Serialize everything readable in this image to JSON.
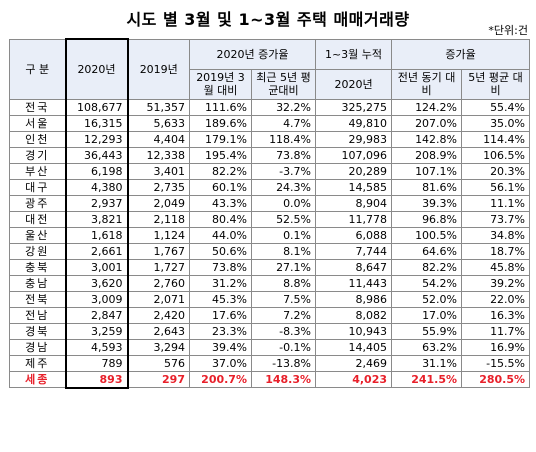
{
  "title": "시도 별 3월 및 1~3월 주택 매매거래량",
  "unit": "*단위:건",
  "headers": {
    "region": "구 분",
    "y2020": "2020년",
    "y2019": "2019년",
    "change2020": "2020년  증가율",
    "vs2019_mar": "2019년 3월 대비",
    "vs5yr": "최근 5년 평균대비",
    "cum": "1~3월 누적",
    "cum2020": "2020년",
    "growth": "증가율",
    "yoy": "전년 동기 대비",
    "fiveyr": "5년 평균 대비"
  },
  "rows": [
    {
      "region": "전국",
      "y2020": "108,677",
      "y2019": "51,357",
      "vs2019": "111.6%",
      "vs5yr": "32.2%",
      "cum2020": "325,275",
      "yoy": "124.2%",
      "fiveyr": "55.4%"
    },
    {
      "region": "서울",
      "y2020": "16,315",
      "y2019": "5,633",
      "vs2019": "189.6%",
      "vs5yr": "4.7%",
      "cum2020": "49,810",
      "yoy": "207.0%",
      "fiveyr": "35.0%"
    },
    {
      "region": "인천",
      "y2020": "12,293",
      "y2019": "4,404",
      "vs2019": "179.1%",
      "vs5yr": "118.4%",
      "cum2020": "29,983",
      "yoy": "142.8%",
      "fiveyr": "114.4%"
    },
    {
      "region": "경기",
      "y2020": "36,443",
      "y2019": "12,338",
      "vs2019": "195.4%",
      "vs5yr": "73.8%",
      "cum2020": "107,096",
      "yoy": "208.9%",
      "fiveyr": "106.5%"
    },
    {
      "region": "부산",
      "y2020": "6,198",
      "y2019": "3,401",
      "vs2019": "82.2%",
      "vs5yr": "-3.7%",
      "cum2020": "20,289",
      "yoy": "107.1%",
      "fiveyr": "20.3%"
    },
    {
      "region": "대구",
      "y2020": "4,380",
      "y2019": "2,735",
      "vs2019": "60.1%",
      "vs5yr": "24.3%",
      "cum2020": "14,585",
      "yoy": "81.6%",
      "fiveyr": "56.1%"
    },
    {
      "region": "광주",
      "y2020": "2,937",
      "y2019": "2,049",
      "vs2019": "43.3%",
      "vs5yr": "0.0%",
      "cum2020": "8,904",
      "yoy": "39.3%",
      "fiveyr": "11.1%"
    },
    {
      "region": "대전",
      "y2020": "3,821",
      "y2019": "2,118",
      "vs2019": "80.4%",
      "vs5yr": "52.5%",
      "cum2020": "11,778",
      "yoy": "96.8%",
      "fiveyr": "73.7%"
    },
    {
      "region": "울산",
      "y2020": "1,618",
      "y2019": "1,124",
      "vs2019": "44.0%",
      "vs5yr": "0.1%",
      "cum2020": "6,088",
      "yoy": "100.5%",
      "fiveyr": "34.8%"
    },
    {
      "region": "강원",
      "y2020": "2,661",
      "y2019": "1,767",
      "vs2019": "50.6%",
      "vs5yr": "8.1%",
      "cum2020": "7,744",
      "yoy": "64.6%",
      "fiveyr": "18.7%"
    },
    {
      "region": "충북",
      "y2020": "3,001",
      "y2019": "1,727",
      "vs2019": "73.8%",
      "vs5yr": "27.1%",
      "cum2020": "8,647",
      "yoy": "82.2%",
      "fiveyr": "45.8%"
    },
    {
      "region": "충남",
      "y2020": "3,620",
      "y2019": "2,760",
      "vs2019": "31.2%",
      "vs5yr": "8.8%",
      "cum2020": "11,443",
      "yoy": "54.2%",
      "fiveyr": "39.2%"
    },
    {
      "region": "전북",
      "y2020": "3,009",
      "y2019": "2,071",
      "vs2019": "45.3%",
      "vs5yr": "7.5%",
      "cum2020": "8,986",
      "yoy": "52.0%",
      "fiveyr": "22.0%"
    },
    {
      "region": "전남",
      "y2020": "2,847",
      "y2019": "2,420",
      "vs2019": "17.6%",
      "vs5yr": "7.2%",
      "cum2020": "8,082",
      "yoy": "17.0%",
      "fiveyr": "16.3%"
    },
    {
      "region": "경북",
      "y2020": "3,259",
      "y2019": "2,643",
      "vs2019": "23.3%",
      "vs5yr": "-8.3%",
      "cum2020": "10,943",
      "yoy": "55.9%",
      "fiveyr": "11.7%"
    },
    {
      "region": "경남",
      "y2020": "4,593",
      "y2019": "3,294",
      "vs2019": "39.4%",
      "vs5yr": "-0.1%",
      "cum2020": "14,405",
      "yoy": "63.2%",
      "fiveyr": "16.9%"
    },
    {
      "region": "제주",
      "y2020": "789",
      "y2019": "576",
      "vs2019": "37.0%",
      "vs5yr": "-13.8%",
      "cum2020": "2,469",
      "yoy": "31.1%",
      "fiveyr": "-15.5%"
    },
    {
      "region": "세종",
      "y2020": "893",
      "y2019": "297",
      "vs2019": "200.7%",
      "vs5yr": "148.3%",
      "cum2020": "4,023",
      "yoy": "241.5%",
      "fiveyr": "280.5%",
      "highlight": true
    }
  ],
  "colors": {
    "highlight": "#e8202a",
    "header_bg": "#e9eef8",
    "border": "#8a8a8a"
  }
}
